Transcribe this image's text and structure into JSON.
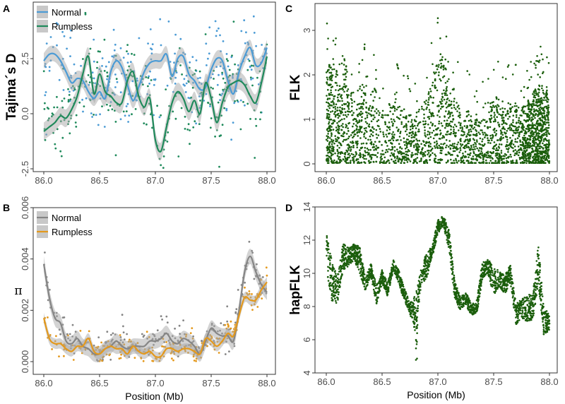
{
  "chart_data": [
    {
      "panel": "A",
      "type": "line",
      "ylabel": "Tajima´s D",
      "xlabel": "",
      "xlim": [
        86.0,
        88.0
      ],
      "ylim": [
        -2.5,
        2.5
      ],
      "xticks": [
        "86.0",
        "86.5",
        "87.0",
        "87.5",
        "88.0"
      ],
      "yticks": [
        "-2.5",
        "0.0",
        "2.5"
      ],
      "ytick_values": [
        -2.5,
        0,
        2.5
      ],
      "x": [
        86.0,
        86.05,
        86.1,
        86.15,
        86.2,
        86.25,
        86.3,
        86.35,
        86.4,
        86.45,
        86.5,
        86.55,
        86.6,
        86.65,
        86.7,
        86.75,
        86.8,
        86.85,
        86.9,
        86.95,
        87.0,
        87.05,
        87.1,
        87.15,
        87.2,
        87.25,
        87.3,
        87.35,
        87.4,
        87.45,
        87.5,
        87.55,
        87.6,
        87.65,
        87.7,
        87.75,
        87.8,
        87.85,
        87.9,
        87.95,
        88.0
      ],
      "series": [
        {
          "name": "Normal",
          "color": "#4b9bd5",
          "ci_halfwidth": 0.35,
          "point_spread": 1.0,
          "values": [
            2.4,
            2.7,
            2.7,
            2.4,
            1.9,
            1.4,
            1.6,
            1.5,
            1.0,
            0.7,
            1.0,
            0.7,
            1.9,
            2.4,
            2.1,
            1.3,
            0.6,
            1.2,
            1.9,
            2.3,
            2.4,
            2.4,
            2.7,
            1.7,
            2.5,
            2.6,
            1.8,
            1.5,
            1.1,
            1.2,
            2.0,
            2.5,
            2.4,
            1.5,
            0.9,
            1.9,
            2.6,
            3.0,
            2.2,
            2.3,
            3.0
          ]
        },
        {
          "name": "Rumpless",
          "color": "#1f8a5b",
          "ci_halfwidth": 0.4,
          "point_spread": 1.0,
          "values": [
            -0.8,
            -0.6,
            -0.4,
            -0.1,
            -0.2,
            0.2,
            0.8,
            1.8,
            2.6,
            0.9,
            1.8,
            1.0,
            0.8,
            0.5,
            0.5,
            1.5,
            1.9,
            0.8,
            0.3,
            0.7,
            -1.2,
            -1.7,
            -0.6,
            0.5,
            1.0,
            0.7,
            0.1,
            0.6,
            0.0,
            1.4,
            0.7,
            -0.4,
            0.5,
            1.2,
            1.4,
            1.5,
            1.3,
            0.8,
            0.5,
            1.4,
            2.6
          ]
        }
      ],
      "legend": "top-left"
    },
    {
      "panel": "B",
      "type": "line",
      "ylabel": "π",
      "xlabel": "Position (Mb)",
      "xlim": [
        86.0,
        88.0
      ],
      "ylim": [
        0,
        0.006
      ],
      "xticks": [
        "86.0",
        "86.5",
        "87.0",
        "87.5",
        "88.0"
      ],
      "yticks": [
        "0.000",
        "0.002",
        "0.004",
        "0.006"
      ],
      "ytick_values": [
        0,
        0.002,
        0.004,
        0.006
      ],
      "x": [
        86.0,
        86.05,
        86.1,
        86.15,
        86.2,
        86.25,
        86.3,
        86.35,
        86.4,
        86.45,
        86.5,
        86.55,
        86.6,
        86.65,
        86.7,
        86.75,
        86.8,
        86.85,
        86.9,
        86.95,
        87.0,
        87.05,
        87.1,
        87.15,
        87.2,
        87.25,
        87.3,
        87.35,
        87.4,
        87.45,
        87.5,
        87.55,
        87.6,
        87.65,
        87.7,
        87.75,
        87.8,
        87.85,
        87.9,
        87.95,
        88.0
      ],
      "series": [
        {
          "name": "Normal",
          "color": "#858585",
          "ci_halfwidth": 0.0003,
          "point_spread": 0.0005,
          "values": [
            0.0038,
            0.0025,
            0.0017,
            0.0015,
            0.0008,
            0.0007,
            0.0009,
            0.0006,
            0.0005,
            0.0003,
            0.0003,
            0.0005,
            0.0006,
            0.0008,
            0.0006,
            0.0005,
            0.0006,
            0.0006,
            0.0006,
            0.0008,
            0.0008,
            0.0009,
            0.0011,
            0.0008,
            0.0007,
            0.0009,
            0.0008,
            0.0006,
            0.0003,
            0.0008,
            0.0013,
            0.0011,
            0.001,
            0.001,
            0.0008,
            0.002,
            0.0035,
            0.0041,
            0.0035,
            0.003,
            0.0027
          ]
        },
        {
          "name": "Rumpless",
          "color": "#e4991c",
          "ci_halfwidth": 0.0002,
          "point_spread": 0.0004,
          "values": [
            0.0017,
            0.0009,
            0.0007,
            0.0007,
            0.0005,
            0.0004,
            0.0006,
            0.0006,
            0.0009,
            0.0004,
            0.0003,
            0.0005,
            0.0006,
            0.0005,
            0.0005,
            0.0003,
            0.0006,
            0.0004,
            0.0003,
            0.0004,
            0.0002,
            0.0002,
            0.0005,
            0.0005,
            0.0004,
            0.0005,
            0.0005,
            0.0004,
            0.0003,
            0.0009,
            0.0008,
            0.0006,
            0.0008,
            0.0011,
            0.001,
            0.0018,
            0.0025,
            0.0024,
            0.0024,
            0.0028,
            0.0031
          ]
        }
      ],
      "legend": "top-left"
    },
    {
      "panel": "C",
      "type": "scatter",
      "ylabel": "FLK",
      "xlabel": "",
      "xlim": [
        86.0,
        88.0
      ],
      "ylim": [
        0,
        3.4
      ],
      "xticks": [
        "86.0",
        "86.5",
        "87.0",
        "87.5",
        "88.0"
      ],
      "yticks": [
        "0",
        "1",
        "2",
        "3"
      ],
      "ytick_values": [
        0,
        1,
        2,
        3
      ],
      "color": "#1b5e0c",
      "bins_x": [
        86.0,
        86.05,
        86.1,
        86.15,
        86.2,
        86.25,
        86.3,
        86.35,
        86.4,
        86.45,
        86.5,
        86.55,
        86.6,
        86.65,
        86.7,
        86.75,
        86.8,
        86.85,
        86.9,
        86.95,
        87.0,
        87.05,
        87.1,
        87.15,
        87.2,
        87.25,
        87.3,
        87.35,
        87.4,
        87.45,
        87.5,
        87.55,
        87.6,
        87.65,
        87.7,
        87.75,
        87.8,
        87.85,
        87.9,
        87.95
      ],
      "bins_max": [
        2.3,
        2.2,
        1.8,
        2.4,
        1.6,
        1.4,
        1.8,
        1.4,
        1.7,
        1.2,
        1.3,
        1.4,
        1.4,
        1.3,
        1.1,
        1.0,
        1.3,
        1.5,
        2.0,
        2.3,
        2.5,
        2.3,
        1.7,
        1.4,
        1.0,
        1.2,
        1.0,
        1.0,
        1.0,
        1.4,
        1.5,
        1.3,
        1.4,
        1.4,
        1.3,
        1.3,
        1.4,
        1.7,
        1.8,
        1.7
      ],
      "bins_count": [
        140,
        80,
        90,
        80,
        60,
        55,
        70,
        50,
        60,
        30,
        35,
        45,
        50,
        45,
        60,
        50,
        45,
        50,
        55,
        60,
        70,
        65,
        60,
        40,
        55,
        60,
        55,
        50,
        45,
        55,
        70,
        65,
        55,
        60,
        60,
        110,
        150,
        170,
        170,
        140
      ]
    },
    {
      "panel": "D",
      "type": "scatter",
      "ylabel": "hapFLK",
      "xlabel": "Position (Mb)",
      "xlim": [
        86.0,
        88.0
      ],
      "ylim": [
        4,
        14
      ],
      "xticks": [
        "86.0",
        "86.5",
        "87.0",
        "87.5",
        "88.0"
      ],
      "yticks": [
        "4",
        "6",
        "8",
        "10",
        "12",
        "14"
      ],
      "ytick_values": [
        4,
        6,
        8,
        10,
        12,
        14
      ],
      "color": "#1b5e0c",
      "x": [
        86.0,
        86.05,
        86.1,
        86.15,
        86.2,
        86.25,
        86.3,
        86.35,
        86.4,
        86.45,
        86.5,
        86.55,
        86.6,
        86.65,
        86.7,
        86.75,
        86.8,
        86.85,
        86.9,
        86.95,
        87.0,
        87.05,
        87.1,
        87.15,
        87.2,
        87.25,
        87.3,
        87.35,
        87.4,
        87.45,
        87.5,
        87.55,
        87.6,
        87.65,
        87.7,
        87.75,
        87.8,
        87.85,
        87.9,
        87.95,
        88.0
      ],
      "center": [
        11.5,
        9.5,
        9.0,
        11.0,
        11.0,
        11.3,
        10.8,
        9.3,
        10.2,
        8.7,
        9.8,
        9.0,
        10.5,
        9.8,
        8.7,
        7.9,
        7.5,
        9.8,
        10.5,
        11.3,
        12.8,
        13.2,
        12.0,
        9.0,
        8.2,
        8.5,
        7.8,
        8.0,
        10.2,
        10.4,
        9.5,
        9.7,
        9.3,
        10.0,
        7.5,
        7.9,
        7.9,
        8.0,
        10.5,
        7.2,
        7.0
      ],
      "spread": [
        1.5,
        1.5,
        1.0,
        1.0,
        0.7,
        0.6,
        1.0,
        0.5,
        0.5,
        0.7,
        0.5,
        0.5,
        0.4,
        0.5,
        0.5,
        0.4,
        1.5,
        0.6,
        1.0,
        0.4,
        0.5,
        0.4,
        0.8,
        0.7,
        0.5,
        0.5,
        0.4,
        0.5,
        0.6,
        0.6,
        1.0,
        0.6,
        0.7,
        0.7,
        0.8,
        0.7,
        1.0,
        1.0,
        1.5,
        1.2,
        0.5
      ]
    }
  ]
}
